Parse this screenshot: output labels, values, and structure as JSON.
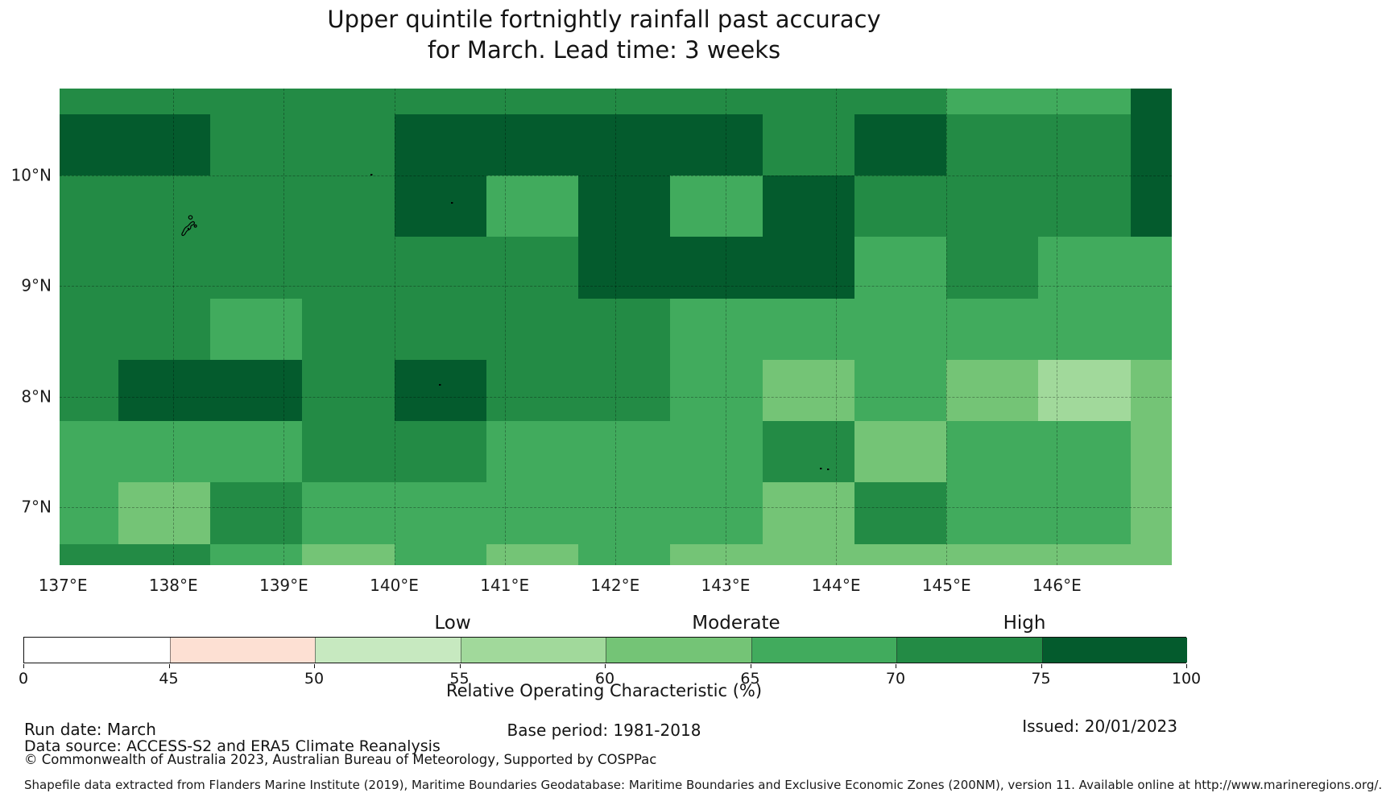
{
  "title": {
    "line1": "Upper quintile fortnightly rainfall past accuracy",
    "line2": "for March. Lead time: 3 weeks"
  },
  "chart_data": {
    "type": "heatmap",
    "title": "Upper quintile fortnightly rainfall past accuracy for March. Lead time: 3 weeks",
    "value_name": "Relative Operating Characteristic (%)",
    "lon_range": [
      136.97,
      147.04
    ],
    "lat_range": [
      6.475,
      10.787
    ],
    "x_ticks": [
      {
        "lon": 137,
        "label": "137°E"
      },
      {
        "lon": 138,
        "label": "138°E"
      },
      {
        "lon": 139,
        "label": "139°E"
      },
      {
        "lon": 140,
        "label": "140°E"
      },
      {
        "lon": 141,
        "label": "141°E"
      },
      {
        "lon": 142,
        "label": "142°E"
      },
      {
        "lon": 143,
        "label": "143°E"
      },
      {
        "lon": 144,
        "label": "144°E"
      },
      {
        "lon": 145,
        "label": "145°E"
      },
      {
        "lon": 146,
        "label": "146°E"
      }
    ],
    "y_ticks": [
      {
        "lat": 10,
        "label": "10°N"
      },
      {
        "lat": 9,
        "label": "9°N"
      },
      {
        "lat": 8,
        "label": "8°N"
      },
      {
        "lat": 7,
        "label": "7°N"
      }
    ],
    "gridline_lons": [
      138,
      139,
      140,
      141,
      142,
      143,
      144,
      145,
      146
    ],
    "gridline_lats": [
      7,
      8,
      9,
      10
    ],
    "cell_lon_edges": [
      136.97,
      137.5,
      138.333,
      139.167,
      140.0,
      140.833,
      141.667,
      142.5,
      143.333,
      144.167,
      145.0,
      145.833,
      146.667,
      147.04
    ],
    "cell_lat_edges": [
      10.787,
      10.556,
      10.0,
      9.444,
      8.889,
      8.333,
      7.778,
      7.222,
      6.667,
      6.475
    ],
    "bins": {
      "A": {
        "range": "75-100",
        "color": "#045b2d"
      },
      "B": {
        "range": "70-75",
        "color": "#238b45"
      },
      "C": {
        "range": "65-70",
        "color": "#41ab5d"
      },
      "D": {
        "range": "60-65",
        "color": "#74c476"
      },
      "E": {
        "range": "55-60",
        "color": "#a1d99b"
      }
    },
    "cells": [
      "BBBBBBBBBBCCA",
      "AABBAAAABABBA",
      "BBBBACACABBBA",
      "BBBBBBAAACBCC",
      "BBCBBBBCCCCCC",
      "BAABABBCDCDED",
      "CCCBBCCCBDCCD",
      "CDBCCCCCDBCCD",
      "BBCDCDCDDDDDD"
    ],
    "island_specks": [
      [
        460,
        216
      ],
      [
        560,
        251
      ],
      [
        545,
        477
      ],
      [
        1018,
        581
      ],
      [
        1027,
        582
      ]
    ],
    "legend_position": "bottom",
    "grid": "dashed graticule on"
  },
  "colorbar": {
    "tick_labels": [
      "0",
      "45",
      "50",
      "55",
      "60",
      "65",
      "70",
      "75",
      "100"
    ],
    "segments": [
      {
        "range": "0-45",
        "color": "#ffffff"
      },
      {
        "range": "45-50",
        "color": "#fde0d3"
      },
      {
        "range": "50-55",
        "color": "#c7e9c0"
      },
      {
        "range": "55-60",
        "color": "#a1d99b"
      },
      {
        "range": "60-65",
        "color": "#74c476"
      },
      {
        "range": "65-70",
        "color": "#41ab5d"
      },
      {
        "range": "70-75",
        "color": "#238b45"
      },
      {
        "range": "75-100",
        "color": "#045b2d"
      }
    ],
    "category_labels": [
      {
        "text": "Low",
        "x": 562
      },
      {
        "text": "Moderate",
        "x": 914
      },
      {
        "text": "High",
        "x": 1272
      }
    ],
    "axis_label": "Relative Operating Characteristic (%)"
  },
  "footer": {
    "run_date": "Run date: March",
    "data_source": "Data source: ACCESS-S2 and ERA5 Climate Reanalysis",
    "copyright": "© Commonwealth of Australia 2023, Australian Bureau of Meteorology, Supported by COSPPac",
    "base_period": "Base period: 1981-2018",
    "issued": "Issued: 20/01/2023",
    "shapefile": "Shapefile data extracted from Flanders Marine Institute (2019), Maritime Boundaries Geodatabase: Maritime Boundaries and Exclusive Economic Zones (200NM), version 11. Available online at http://www.marineregions.org/."
  }
}
